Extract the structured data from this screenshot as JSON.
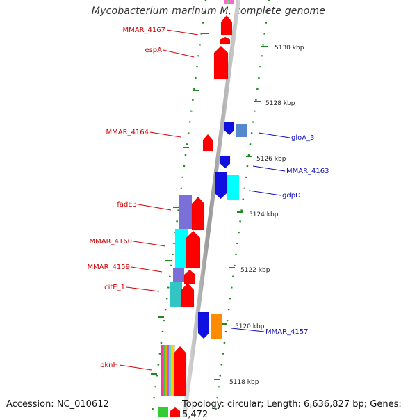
{
  "title": "Mycobacterium marinum M, complete genome",
  "accession": "Accession: NC_010612",
  "summary": "Topology: circular; Length: 6,636,827 bp; Genes: 5,472",
  "ticks": [
    "5130 kbp",
    "5128 kbp",
    "5126 kbp",
    "5124 kbp",
    "5122 kbp",
    "5120 kbp",
    "5118 kbp"
  ],
  "labels": {
    "forward": [
      "MMAR_4167",
      "espA",
      "MMAR_4164",
      "fadE3",
      "MMAR_4160",
      "MMAR_4159",
      "citE_1",
      "pknH"
    ],
    "reverse": [
      "gloA_3",
      "MMAR_4163",
      "gdpD",
      "MMAR_4157"
    ]
  },
  "colors": {
    "forward_gene": "#ff0000",
    "reverse_gene": "#1010e0",
    "label_forward": "#d00000",
    "label_reverse": "#1010b0",
    "tick": "#1e8a1e",
    "backbone": "#909090",
    "purple_feature": "#7a70d8",
    "cyan_feature": "#00ffff",
    "teal_feature": "#33c4c4",
    "orange_feature": "#ff8c00",
    "steelblue_feature": "#5588cc"
  }
}
